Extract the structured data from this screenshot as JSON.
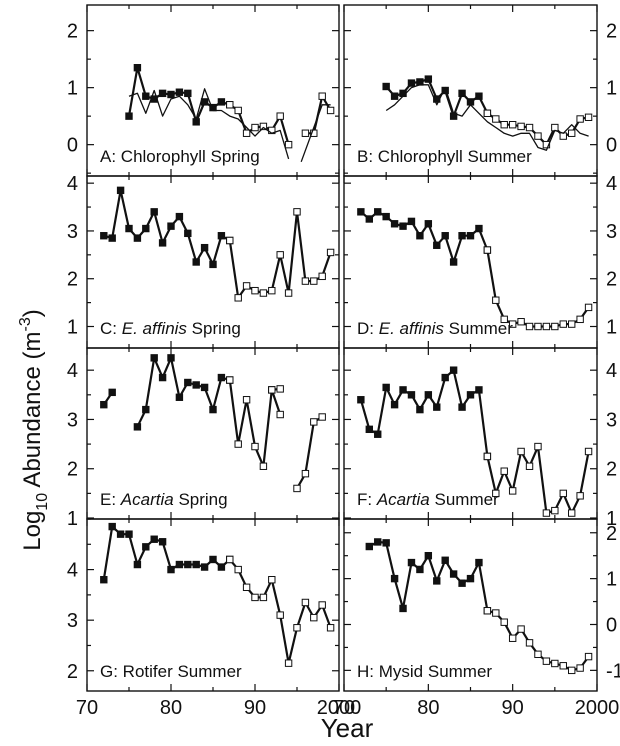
{
  "figure": {
    "xlabel": "Year",
    "ylabel_main": "Log",
    "ylabel_sub": "10",
    "ylabel_rest": " Abundance (m",
    "ylabel_sup": "-3",
    "ylabel_end": ")"
  },
  "chart_data": [
    {
      "id": "A",
      "type": "line",
      "label_prefix": "A: ",
      "label_italic": "",
      "label_suffix": "Chlorophyll Spring",
      "xlim": [
        70,
        100
      ],
      "ylim": [
        -0.55,
        2.45
      ],
      "yticks": [
        0,
        1,
        2
      ],
      "ytick_labels": [
        "0",
        "1",
        "2"
      ],
      "series": [
        {
          "style": "filled-marker-line",
          "x": [
            75,
            76,
            77,
            78,
            79,
            80,
            81,
            82,
            83,
            84,
            85,
            86,
            87
          ],
          "y": [
            0.5,
            1.35,
            0.85,
            0.8,
            0.9,
            0.88,
            0.92,
            0.9,
            0.4,
            0.75,
            0.65,
            0.75,
            0.7
          ]
        },
        {
          "style": "open-marker-line",
          "x": [
            87,
            88,
            89,
            90,
            91,
            92,
            93,
            94
          ],
          "y": [
            0.7,
            0.6,
            0.2,
            0.3,
            0.32,
            0.25,
            0.5,
            0.0
          ]
        },
        {
          "style": "open-marker-line",
          "x": [
            96,
            97,
            98,
            99
          ],
          "y": [
            0.2,
            0.2,
            0.85,
            0.6
          ]
        },
        {
          "style": "thin-line",
          "x": [
            75,
            76,
            77,
            78,
            79,
            80,
            81,
            82,
            83,
            84,
            85,
            86,
            87,
            88,
            89,
            90,
            91,
            92,
            93,
            94
          ],
          "y": [
            0.85,
            0.9,
            0.55,
            0.95,
            0.5,
            0.8,
            0.85,
            0.7,
            0.45,
            0.98,
            0.6,
            0.6,
            0.5,
            0.45,
            0.3,
            0.15,
            0.3,
            0.2,
            0.25,
            -0.25
          ]
        },
        {
          "style": "thin-line",
          "x": [
            95.5,
            97,
            98,
            99
          ],
          "y": [
            -0.3,
            0.3,
            0.7,
            0.7
          ]
        }
      ]
    },
    {
      "id": "B",
      "type": "line",
      "label_prefix": "B: ",
      "label_italic": "",
      "label_suffix": "Chlorophyll Summer",
      "xlim": [
        70,
        100
      ],
      "ylim": [
        -0.55,
        2.45
      ],
      "yticks": [
        0,
        1,
        2
      ],
      "ytick_labels": [
        "0",
        "1",
        "2"
      ],
      "series": [
        {
          "style": "filled-marker-line",
          "x": [
            75,
            76,
            77,
            78,
            79,
            80,
            81,
            82,
            83,
            84,
            85,
            86,
            87
          ],
          "y": [
            1.02,
            0.85,
            0.9,
            1.08,
            1.1,
            1.15,
            0.8,
            0.95,
            0.5,
            0.9,
            0.75,
            0.85,
            0.55
          ]
        },
        {
          "style": "open-marker-line",
          "x": [
            87,
            88,
            89,
            90,
            91,
            92,
            93,
            94,
            95,
            96,
            97,
            98,
            99
          ],
          "y": [
            0.55,
            0.45,
            0.35,
            0.35,
            0.32,
            0.3,
            0.15,
            0.0,
            0.3,
            0.15,
            0.2,
            0.45,
            0.48
          ]
        },
        {
          "style": "thin-line",
          "x": [
            75,
            76,
            77,
            78,
            79,
            80,
            81,
            82,
            83,
            84,
            85,
            86,
            87,
            88,
            89,
            90,
            91,
            92,
            93,
            94,
            95,
            96,
            97,
            98,
            99
          ],
          "y": [
            0.6,
            0.7,
            0.85,
            1.0,
            1.05,
            1.05,
            0.7,
            1.0,
            0.55,
            0.5,
            0.7,
            0.55,
            0.4,
            0.3,
            0.2,
            0.15,
            0.2,
            0.2,
            -0.05,
            -0.1,
            0.25,
            0.2,
            0.35,
            0.2,
            0.15
          ]
        }
      ]
    },
    {
      "id": "C",
      "type": "line",
      "label_prefix": "C: ",
      "label_italic": "E. affinis",
      "label_suffix": " Spring",
      "xlim": [
        70,
        100
      ],
      "ylim": [
        0.55,
        4.15
      ],
      "yticks": [
        1,
        2,
        3,
        4
      ],
      "ytick_labels": [
        "1",
        "2",
        "3",
        "4"
      ],
      "series": [
        {
          "style": "filled-marker-line",
          "x": [
            72,
            73,
            74,
            75,
            76,
            77,
            78,
            79,
            80,
            81,
            82,
            83,
            84,
            85,
            86,
            87
          ],
          "y": [
            2.9,
            2.85,
            3.85,
            3.05,
            2.85,
            3.05,
            3.4,
            2.75,
            3.1,
            3.3,
            2.95,
            2.35,
            2.65,
            2.3,
            2.9,
            2.8
          ]
        },
        {
          "style": "open-marker-line",
          "x": [
            87,
            88,
            89,
            90,
            91,
            92,
            93,
            94,
            95,
            96,
            97,
            98,
            99
          ],
          "y": [
            2.8,
            1.6,
            1.85,
            1.75,
            1.7,
            1.75,
            2.5,
            1.7,
            3.4,
            1.95,
            1.95,
            2.05,
            2.55
          ]
        }
      ]
    },
    {
      "id": "D",
      "type": "line",
      "label_prefix": "D: ",
      "label_italic": "E. affinis",
      "label_suffix": " Summer",
      "xlim": [
        70,
        100
      ],
      "ylim": [
        0.55,
        4.15
      ],
      "yticks": [
        1,
        2,
        3,
        4
      ],
      "ytick_labels": [
        "1",
        "2",
        "3",
        "4"
      ],
      "series": [
        {
          "style": "filled-marker-line",
          "x": [
            72,
            73,
            74,
            75,
            76,
            77,
            78,
            79,
            80,
            81,
            82,
            83,
            84,
            85,
            86,
            87
          ],
          "y": [
            3.4,
            3.25,
            3.4,
            3.3,
            3.15,
            3.1,
            3.2,
            2.9,
            3.15,
            2.7,
            2.9,
            2.35,
            2.9,
            2.9,
            3.05,
            2.6
          ]
        },
        {
          "style": "open-marker-line",
          "x": [
            87,
            88,
            89,
            90,
            91,
            92,
            93,
            94,
            95,
            96,
            97,
            98,
            99
          ],
          "y": [
            2.6,
            1.55,
            1.15,
            1.05,
            1.1,
            1.0,
            1.0,
            1.0,
            1.0,
            1.05,
            1.05,
            1.15,
            1.4
          ]
        }
      ]
    },
    {
      "id": "E",
      "type": "line",
      "label_prefix": "E: ",
      "label_italic": "Acartia",
      "label_suffix": " Spring",
      "xlim": [
        70,
        100
      ],
      "ylim": [
        0.98,
        4.45
      ],
      "yticks": [
        1,
        2,
        3,
        4
      ],
      "ytick_labels": [
        "1",
        "2",
        "3",
        "4"
      ],
      "series": [
        {
          "style": "filled-marker-line",
          "x": [
            72,
            73
          ],
          "y": [
            3.3,
            3.55
          ]
        },
        {
          "style": "filled-marker-line",
          "x": [
            76,
            77,
            78,
            79,
            80,
            81,
            82,
            83,
            84,
            85,
            86,
            87
          ],
          "y": [
            2.85,
            3.2,
            4.25,
            3.85,
            4.25,
            3.45,
            3.75,
            3.7,
            3.65,
            3.2,
            3.85,
            3.8
          ]
        },
        {
          "style": "open-marker-line",
          "x": [
            87,
            88,
            89,
            90,
            91,
            92,
            93
          ],
          "y": [
            3.8,
            2.5,
            3.4,
            2.45,
            2.05,
            3.6,
            3.1
          ]
        },
        {
          "style": "open-marker-line",
          "x": [
            92,
            93
          ],
          "y": [
            3.6,
            3.62
          ]
        },
        {
          "style": "open-marker-line",
          "x": [
            95,
            96,
            97,
            98
          ],
          "y": [
            1.6,
            1.9,
            2.95,
            3.05
          ]
        }
      ]
    },
    {
      "id": "F",
      "type": "line",
      "label_prefix": "F: ",
      "label_italic": "Acartia",
      "label_suffix": " Summer",
      "xlim": [
        70,
        100
      ],
      "ylim": [
        0.98,
        4.45
      ],
      "yticks": [
        1,
        2,
        3,
        4
      ],
      "ytick_labels": [
        "1",
        "2",
        "3",
        "4"
      ],
      "series": [
        {
          "style": "filled-marker-line",
          "x": [
            72,
            73,
            74,
            75,
            76,
            77,
            78,
            79,
            80,
            81,
            82,
            83,
            84,
            85,
            86,
            87
          ],
          "y": [
            3.4,
            2.8,
            2.7,
            3.65,
            3.3,
            3.6,
            3.5,
            3.2,
            3.5,
            3.25,
            3.85,
            4.0,
            3.25,
            3.5,
            3.6,
            2.25
          ]
        },
        {
          "style": "open-marker-line",
          "x": [
            87,
            88,
            89,
            90,
            91,
            92,
            93,
            94,
            95,
            96,
            97,
            98,
            99
          ],
          "y": [
            2.25,
            1.5,
            1.95,
            1.55,
            2.35,
            2.05,
            2.45,
            1.1,
            1.15,
            1.5,
            1.1,
            1.45,
            2.35
          ]
        }
      ]
    },
    {
      "id": "G",
      "type": "line",
      "label_prefix": "G: ",
      "label_italic": "",
      "label_suffix": "Rotifer Summer",
      "xlim": [
        70,
        100
      ],
      "ylim": [
        1.6,
        5.0
      ],
      "yticks": [
        2,
        3,
        4
      ],
      "ytick_labels": [
        "2",
        "3",
        "4"
      ],
      "series": [
        {
          "style": "filled-marker-line",
          "x": [
            72,
            73,
            74,
            75,
            76,
            77,
            78,
            79,
            80,
            81,
            82,
            83,
            84,
            85,
            86,
            87
          ],
          "y": [
            3.8,
            4.85,
            4.7,
            4.7,
            4.1,
            4.45,
            4.6,
            4.55,
            4.0,
            4.1,
            4.1,
            4.1,
            4.05,
            4.2,
            4.05,
            4.2
          ]
        },
        {
          "style": "open-marker-line",
          "x": [
            87,
            88,
            89,
            90,
            91,
            92,
            93,
            94,
            95,
            96,
            97,
            98,
            99
          ],
          "y": [
            4.2,
            4.0,
            3.65,
            3.45,
            3.45,
            3.8,
            3.1,
            2.15,
            2.85,
            3.35,
            3.05,
            3.3,
            2.85
          ]
        }
      ]
    },
    {
      "id": "H",
      "type": "line",
      "label_prefix": "H: ",
      "label_italic": "",
      "label_suffix": "Mysid Summer",
      "xlim": [
        70,
        100
      ],
      "ylim": [
        -1.45,
        2.3
      ],
      "yticks": [
        -1,
        0,
        1,
        2
      ],
      "ytick_labels": [
        "-1",
        "0",
        "1",
        "2"
      ],
      "series": [
        {
          "style": "filled-marker-line",
          "x": [
            73,
            74,
            75,
            76,
            77,
            78,
            79,
            80,
            81,
            82,
            83,
            84,
            85,
            86,
            87
          ],
          "y": [
            1.7,
            1.8,
            1.78,
            1.0,
            0.35,
            1.35,
            1.2,
            1.5,
            0.95,
            1.4,
            1.1,
            0.9,
            1.0,
            1.35,
            0.3
          ]
        },
        {
          "style": "open-marker-line",
          "x": [
            87,
            88,
            89,
            90,
            91,
            92,
            93,
            94,
            95,
            96,
            97,
            98,
            99
          ],
          "y": [
            0.3,
            0.25,
            0.05,
            -0.3,
            -0.1,
            -0.4,
            -0.65,
            -0.8,
            -0.85,
            -0.9,
            -1.0,
            -0.95,
            -0.7
          ]
        }
      ]
    }
  ]
}
